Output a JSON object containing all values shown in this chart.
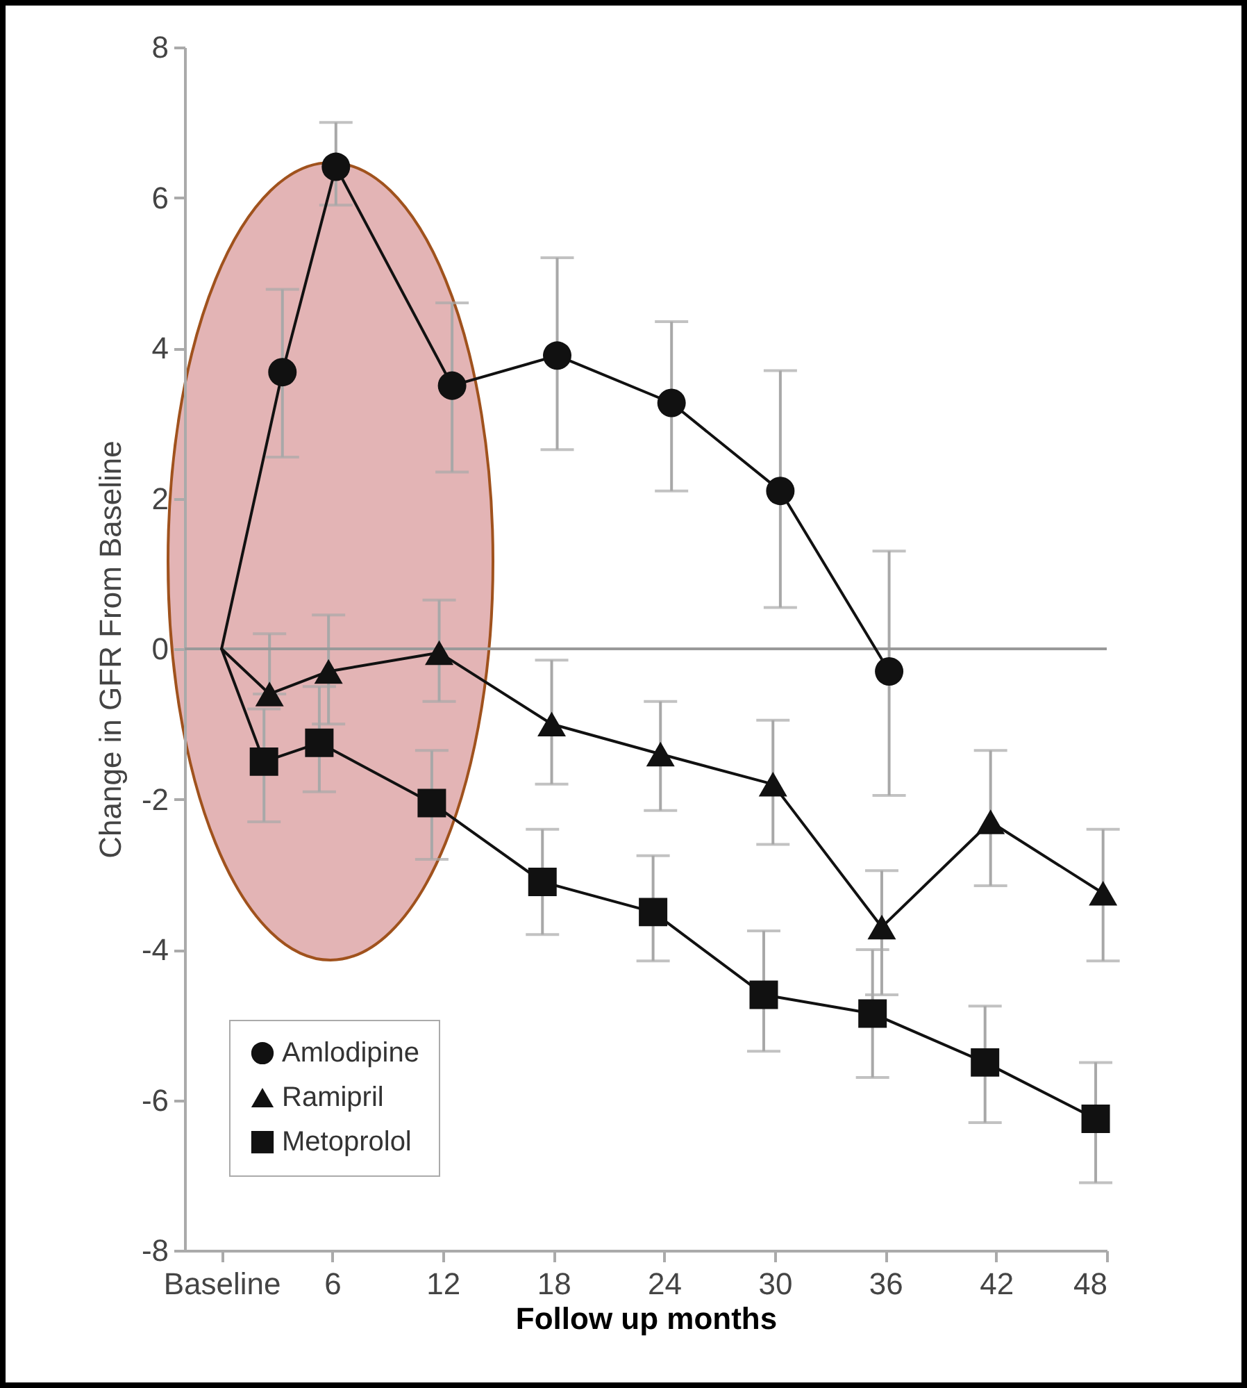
{
  "chart_data": {
    "type": "line",
    "xlabel": "Follow up months",
    "ylabel": "Change in GFR From Baseline",
    "xlim": [
      -2,
      48
    ],
    "xticks": [
      {
        "value": 0,
        "label": "Baseline"
      },
      6,
      12,
      18,
      24,
      30,
      36,
      42,
      48
    ],
    "ylim": [
      -8,
      8
    ],
    "yticks": [
      -8,
      -6,
      -4,
      -2,
      0,
      2,
      4,
      6,
      8
    ],
    "grid": false,
    "legend": "bottom left",
    "ref_lines": [
      {
        "axis": "y",
        "value": 0,
        "color": "#999999"
      }
    ],
    "series": [
      {
        "name": "Amlodipine",
        "color": "#111111",
        "marker": "circle",
        "x": [
          0,
          3.3,
          6.2,
          12.5,
          18.2,
          24.4,
          30.3,
          36.2
        ],
        "values": [
          0,
          3.68,
          6.41,
          3.5,
          3.9,
          3.27,
          2.1,
          -0.3
        ],
        "errors": [
          null,
          [
            2.55,
            4.78
          ],
          [
            5.9,
            7.0
          ],
          [
            2.35,
            4.6
          ],
          [
            2.65,
            5.2
          ],
          [
            2.1,
            4.35
          ],
          [
            0.55,
            3.7
          ],
          [
            -1.95,
            1.3
          ]
        ]
      },
      {
        "name": "Ramipril",
        "color": "#111111",
        "marker": "triangle",
        "x": [
          0,
          2.6,
          5.8,
          11.8,
          17.9,
          23.8,
          29.9,
          35.8,
          41.7,
          47.8
        ],
        "values": [
          0,
          -0.6,
          -0.3,
          -0.05,
          -1.0,
          -1.4,
          -1.8,
          -3.7,
          -2.3,
          -3.25
        ],
        "errors": [
          null,
          [
            -0.6,
            0.2
          ],
          [
            -1.0,
            0.45
          ],
          [
            -0.7,
            0.65
          ],
          [
            -1.8,
            -0.15
          ],
          [
            -2.15,
            -0.7
          ],
          [
            -2.6,
            -0.95
          ],
          [
            -4.6,
            -2.95
          ],
          [
            -3.15,
            -1.35
          ],
          [
            -4.15,
            -2.4
          ]
        ]
      },
      {
        "name": "Metoprolol",
        "color": "#111111",
        "marker": "square",
        "x": [
          0,
          2.3,
          5.3,
          11.4,
          17.4,
          23.4,
          29.4,
          35.3,
          41.4,
          47.4
        ],
        "values": [
          0,
          -1.5,
          -1.25,
          -2.05,
          -3.1,
          -3.5,
          -4.6,
          -4.85,
          -5.5,
          -6.25
        ],
        "errors": [
          null,
          [
            -2.3,
            -0.8
          ],
          [
            -1.9,
            -0.5
          ],
          [
            -2.8,
            -1.35
          ],
          [
            -3.8,
            -2.4
          ],
          [
            -4.15,
            -2.75
          ],
          [
            -5.35,
            -3.75
          ],
          [
            -5.7,
            -4.0
          ],
          [
            -6.3,
            -4.75
          ],
          [
            -7.1,
            -5.5
          ]
        ]
      }
    ]
  }
}
